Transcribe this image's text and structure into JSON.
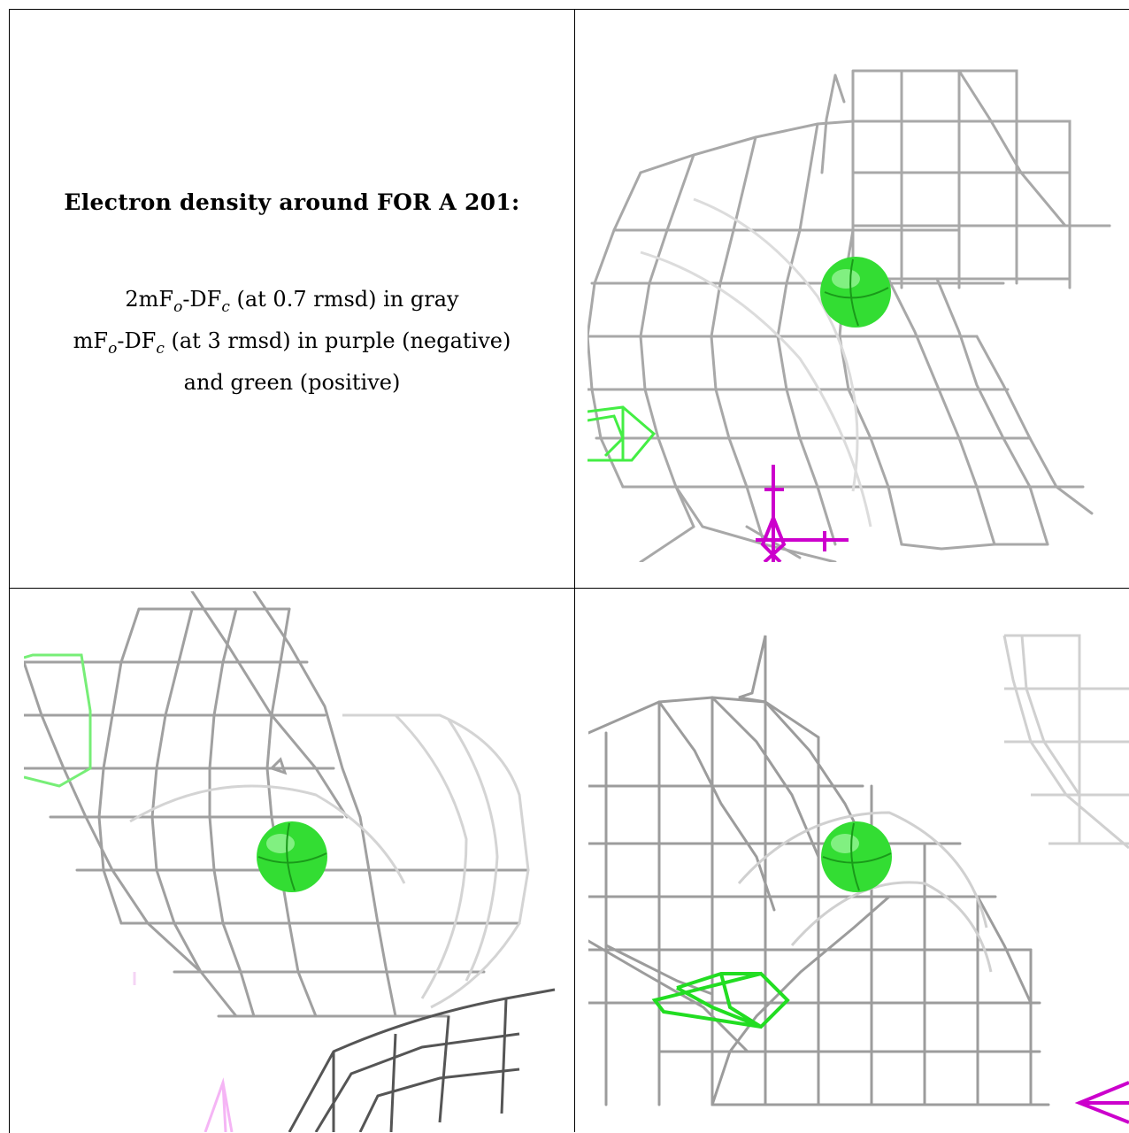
{
  "caption": {
    "title": "Electron density around FOR A 201:",
    "line1": "2mFₒ-DFᴄ (at 0.7 rmsd) in gray",
    "line1_parts": [
      "2mF",
      "o",
      "-DF",
      "c",
      " (at 0.7 rmsd) in gray"
    ],
    "line2_parts": [
      "mF",
      "o",
      "-DF",
      "c",
      " (at 3 rmsd) in purple (negative)"
    ],
    "line3": "and green (positive)"
  },
  "colors": {
    "mesh_gray": "#9a9a9a",
    "positive_green": "#22dd22",
    "negative_purple": "#cc00cc",
    "atom_green": "#33dd33"
  },
  "panels": [
    {
      "name": "density-view-1",
      "atom": "green-sphere",
      "positive_mesh": true,
      "negative_mesh": true
    },
    {
      "name": "density-view-2",
      "atom": "green-sphere",
      "positive_mesh": true,
      "negative_mesh": true
    },
    {
      "name": "density-view-3",
      "atom": "green-sphere",
      "positive_mesh": true,
      "negative_mesh": true
    }
  ]
}
